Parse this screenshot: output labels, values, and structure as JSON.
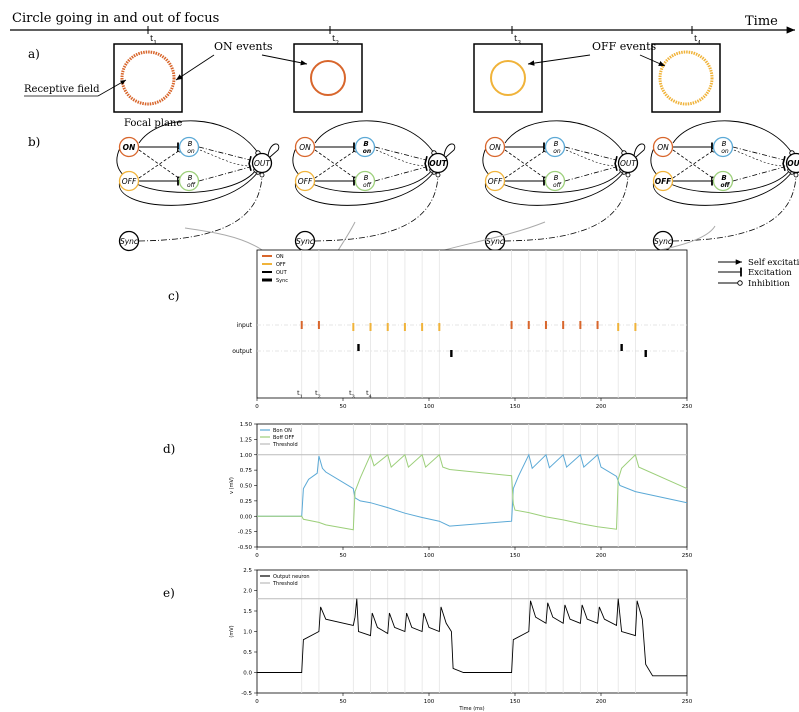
{
  "header": {
    "title": "Circle going in and out of focus",
    "time_label": "Time"
  },
  "times": [
    "t1",
    "t2",
    "t3",
    "t4"
  ],
  "panel_letters": {
    "a": "a)",
    "b": "b)",
    "c": "c)",
    "d": "d)",
    "e": "e)"
  },
  "panel_a": {
    "on_events": "ON events",
    "off_events": "OFF events",
    "receptive_field": "Receptive field",
    "focal_plane": "Focal plane"
  },
  "network": {
    "on": "ON",
    "off": "OFF",
    "b": "B",
    "b_on": "on",
    "b_off": "off",
    "out": "OUT",
    "sync": "Sync"
  },
  "legend_right": {
    "self_excitation": "Self excitation",
    "excitation": "Excitation",
    "inhibition": "Inhibition"
  },
  "colors": {
    "on": "#d8662c",
    "off": "#f0b33a",
    "out": "#000000",
    "b_on": "#5ba9d6",
    "b_off": "#9ccf7a",
    "threshold": "#bbbbbb"
  },
  "chart_data": [
    {
      "type": "scatter",
      "panel": "c",
      "legend": [
        "ON",
        "OFF",
        "OUT",
        "Sync"
      ],
      "y_categories": [
        "input",
        "output"
      ],
      "xlim": [
        0,
        250
      ],
      "x_ticks": [
        "0",
        "50",
        "100",
        "150",
        "200",
        "250"
      ],
      "time_markers": [
        "t1",
        "t2",
        "t3",
        "t4"
      ],
      "on_spikes": [
        26,
        36,
        148,
        158,
        168,
        178,
        188,
        198
      ],
      "off_spikes": [
        56,
        66,
        76,
        86,
        96,
        106,
        210,
        220
      ],
      "out_spikes": [
        59,
        113,
        212,
        226
      ]
    },
    {
      "type": "line",
      "panel": "d",
      "ylabel": "v (mV)",
      "xlim": [
        0,
        250
      ],
      "ylim": [
        -0.5,
        1.5
      ],
      "y_ticks": [
        "-0.50",
        "-0.25",
        "0.00",
        "0.25",
        "0.50",
        "0.75",
        "1.00",
        "1.25",
        "1.50"
      ],
      "x_ticks": [
        "0",
        "50",
        "100",
        "150",
        "200",
        "250"
      ],
      "legend": [
        "Bon ON",
        "Boff OFF",
        "Threshold"
      ],
      "threshold": 1.0,
      "series": [
        {
          "name": "Bon ON",
          "points": [
            [
              0,
              0
            ],
            [
              26,
              0
            ],
            [
              27,
              0.45
            ],
            [
              30,
              0.6
            ],
            [
              35,
              0.7
            ],
            [
              36,
              0.98
            ],
            [
              38,
              0.78
            ],
            [
              40,
              0.72
            ],
            [
              56,
              0.45
            ],
            [
              57,
              0.3
            ],
            [
              60,
              0.25
            ],
            [
              66,
              0.22
            ],
            [
              76,
              0.14
            ],
            [
              86,
              0.05
            ],
            [
              96,
              -0.02
            ],
            [
              106,
              -0.08
            ],
            [
              112,
              -0.16
            ],
            [
              148,
              -0.08
            ],
            [
              149,
              0.45
            ],
            [
              152,
              0.65
            ],
            [
              158,
              1.0
            ],
            [
              160,
              0.78
            ],
            [
              168,
              1.0
            ],
            [
              170,
              0.79
            ],
            [
              178,
              1.0
            ],
            [
              180,
              0.8
            ],
            [
              188,
              1.0
            ],
            [
              190,
              0.8
            ],
            [
              198,
              1.0
            ],
            [
              200,
              0.8
            ],
            [
              209,
              0.65
            ],
            [
              211,
              0.5
            ],
            [
              220,
              0.4
            ],
            [
              250,
              0.22
            ]
          ]
        },
        {
          "name": "Boff OFF",
          "points": [
            [
              0,
              0
            ],
            [
              26,
              0
            ],
            [
              27,
              -0.05
            ],
            [
              36,
              -0.1
            ],
            [
              40,
              -0.14
            ],
            [
              56,
              -0.22
            ],
            [
              57,
              0.4
            ],
            [
              60,
              0.62
            ],
            [
              66,
              1.0
            ],
            [
              68,
              0.82
            ],
            [
              76,
              1.0
            ],
            [
              78,
              0.8
            ],
            [
              86,
              1.0
            ],
            [
              88,
              0.8
            ],
            [
              96,
              1.0
            ],
            [
              98,
              0.8
            ],
            [
              106,
              1.0
            ],
            [
              108,
              0.8
            ],
            [
              112,
              0.76
            ],
            [
              148,
              0.66
            ],
            [
              149,
              0.2
            ],
            [
              150,
              0.1
            ],
            [
              158,
              0.06
            ],
            [
              168,
              -0.01
            ],
            [
              178,
              -0.06
            ],
            [
              188,
              -0.12
            ],
            [
              198,
              -0.17
            ],
            [
              209,
              -0.21
            ],
            [
              210,
              0.6
            ],
            [
              212,
              0.78
            ],
            [
              220,
              1.0
            ],
            [
              222,
              0.8
            ],
            [
              250,
              0.45
            ]
          ]
        }
      ]
    },
    {
      "type": "line",
      "panel": "e",
      "ylabel": "(mV)",
      "xlabel": "Time (ms)",
      "xlim": [
        0,
        250
      ],
      "ylim": [
        -0.5,
        2.5
      ],
      "y_ticks": [
        "-0.5",
        "0.0",
        "0.5",
        "1.0",
        "1.5",
        "2.0",
        "2.5"
      ],
      "x_ticks": [
        "0",
        "50",
        "100",
        "150",
        "200",
        "250"
      ],
      "legend": [
        "Output neuron",
        "Threshold"
      ],
      "threshold": 1.8,
      "series": [
        {
          "name": "Output neuron",
          "points": [
            [
              0,
              0
            ],
            [
              26,
              0
            ],
            [
              27,
              0.8
            ],
            [
              36,
              1.0
            ],
            [
              37,
              1.6
            ],
            [
              40,
              1.3
            ],
            [
              56,
              1.15
            ],
            [
              57,
              1.35
            ],
            [
              58,
              1.8
            ],
            [
              59,
              1.0
            ],
            [
              66,
              0.9
            ],
            [
              67,
              1.45
            ],
            [
              70,
              1.1
            ],
            [
              76,
              0.95
            ],
            [
              77,
              1.45
            ],
            [
              80,
              1.1
            ],
            [
              86,
              1.0
            ],
            [
              87,
              1.45
            ],
            [
              90,
              1.1
            ],
            [
              96,
              1.0
            ],
            [
              97,
              1.45
            ],
            [
              100,
              1.1
            ],
            [
              106,
              1.0
            ],
            [
              107,
              1.6
            ],
            [
              110,
              1.2
            ],
            [
              113,
              1.0
            ],
            [
              114,
              0.1
            ],
            [
              120,
              0
            ],
            [
              148,
              0
            ],
            [
              149,
              0.8
            ],
            [
              158,
              1.0
            ],
            [
              159,
              1.75
            ],
            [
              162,
              1.35
            ],
            [
              168,
              1.2
            ],
            [
              169,
              1.7
            ],
            [
              172,
              1.35
            ],
            [
              178,
              1.2
            ],
            [
              179,
              1.65
            ],
            [
              182,
              1.3
            ],
            [
              188,
              1.2
            ],
            [
              189,
              1.65
            ],
            [
              192,
              1.3
            ],
            [
              198,
              1.2
            ],
            [
              199,
              1.6
            ],
            [
              202,
              1.3
            ],
            [
              209,
              1.15
            ],
            [
              210,
              1.8
            ],
            [
              212,
              1.0
            ],
            [
              220,
              0.9
            ],
            [
              221,
              1.75
            ],
            [
              224,
              1.3
            ],
            [
              226,
              0.2
            ],
            [
              230,
              -0.08
            ],
            [
              250,
              -0.08
            ]
          ]
        }
      ]
    }
  ]
}
